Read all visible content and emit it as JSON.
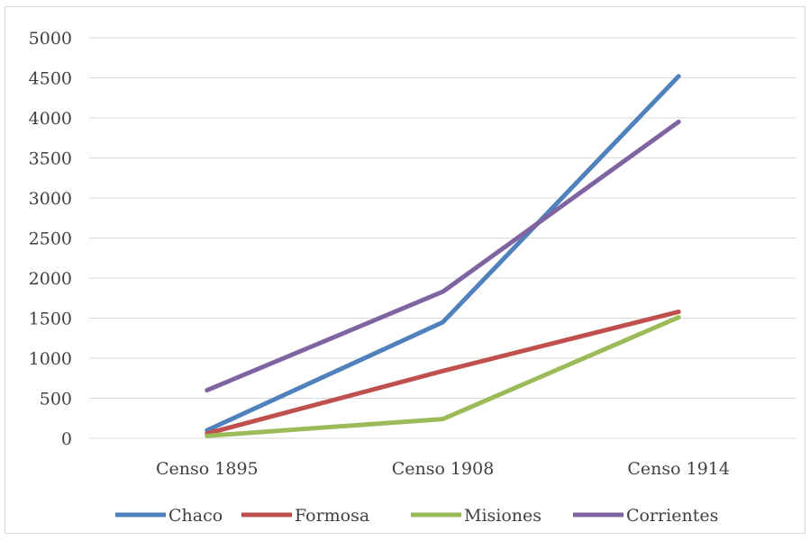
{
  "chart_data": {
    "type": "line",
    "categories": [
      "Censo 1895",
      "Censo 1908",
      "Censo 1914"
    ],
    "y_ticks": [
      "0",
      "500",
      "1000",
      "1500",
      "2000",
      "2500",
      "3000",
      "3500",
      "4000",
      "4500",
      "5000"
    ],
    "ylim": [
      0,
      5000
    ],
    "grid": true,
    "legend_position": "bottom",
    "series": [
      {
        "name": "Chaco",
        "color": "#4f81bd",
        "values": [
          100,
          1450,
          4520
        ]
      },
      {
        "name": "Formosa",
        "color": "#c0504d",
        "values": [
          60,
          840,
          1580
        ]
      },
      {
        "name": "Misiones",
        "color": "#9bbb59",
        "values": [
          30,
          240,
          1510
        ]
      },
      {
        "name": "Corrientes",
        "color": "#8064a2",
        "values": [
          600,
          1830,
          3950
        ]
      }
    ]
  }
}
